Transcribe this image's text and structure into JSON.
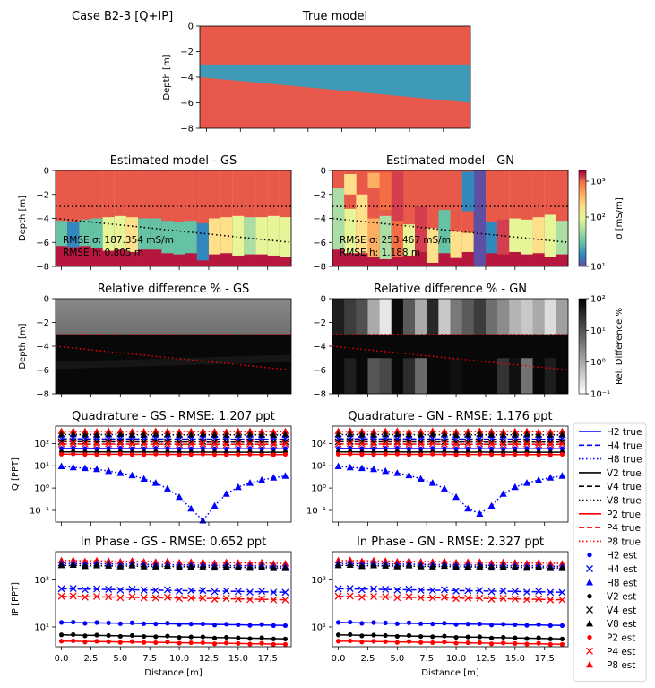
{
  "figure_title": "Case B2-3 [Q+IP]",
  "colors": {
    "true_top": "#e8594a",
    "true_bottom": "#e8574b",
    "true_middle": "#3f9ab7",
    "blue": "#0000ff",
    "black": "#000000",
    "red": "#ff0000"
  },
  "chart_data": [
    {
      "id": "true_model",
      "type": "heatmap",
      "title": "True model",
      "ylabel": "Depth [m]",
      "ylim": [
        -8,
        0
      ],
      "xlim": [
        -0.5,
        19.5
      ],
      "yticks": [
        "0",
        "−2",
        "−4",
        "−6",
        "−8"
      ],
      "layers": [
        {
          "name": "top",
          "sigma_mS_m": 1000
        },
        {
          "name": "middle",
          "sigma_mS_m": 20
        },
        {
          "name": "bottom",
          "sigma_mS_m": 1000
        }
      ],
      "interface_1_depth": [
        -3,
        -3
      ],
      "interface_2_depth": [
        -4,
        -6
      ]
    },
    {
      "id": "est_gs",
      "type": "heatmap",
      "title": "Estimated model - GS",
      "ylabel": "Depth [m]",
      "yticks": [
        "0",
        "−2",
        "−4",
        "−6",
        "−8"
      ],
      "annotation_sigma": "RMSE σ: 187.354 mS/m",
      "annotation_h": "RMSE h: 0.805 m",
      "sounding_h1": [
        4.2,
        4.3,
        4.1,
        4.0,
        3.9,
        3.8,
        3.9,
        4.0,
        4.0,
        4.2,
        4.3,
        4.2,
        4.4,
        4.0,
        3.9,
        3.8,
        3.9,
        3.9,
        3.8,
        3.9
      ],
      "sounding_h2": [
        6.3,
        6.4,
        6.3,
        6.5,
        6.7,
        6.6,
        6.8,
        6.6,
        6.6,
        6.9,
        7.0,
        6.9,
        7.5,
        7.0,
        6.9,
        7.1,
        7.0,
        7.0,
        7.1,
        7.2
      ],
      "sounding_sigma2": [
        30,
        20,
        35,
        40,
        120,
        100,
        150,
        40,
        30,
        30,
        40,
        40,
        25,
        150,
        150,
        110,
        80,
        120,
        130,
        110
      ]
    },
    {
      "id": "est_gn",
      "type": "heatmap",
      "title": "Estimated model - GN",
      "ylabel": "",
      "yticks": [
        "0",
        "−2",
        "−4",
        "−6",
        "−8"
      ],
      "annotation_sigma": "RMSE σ: 253.467 mS/m",
      "annotation_h": "RMSE h: 1.188 m",
      "colorbar_label": "σ [mS/m]",
      "colorbar_ticks": [
        "10³",
        "10²",
        "10¹"
      ],
      "colorbar_range": [
        10,
        2000
      ]
    },
    {
      "id": "rel_gs",
      "type": "heatmap",
      "title": "Relative difference % - GS",
      "ylabel": "Depth [m]",
      "yticks": [
        "0",
        "−2",
        "−4",
        "−6",
        "−8"
      ]
    },
    {
      "id": "rel_gn",
      "type": "heatmap",
      "title": "Relative difference % - GN",
      "ylabel": "",
      "yticks": [
        "0",
        "−2",
        "−4",
        "−6",
        "−8"
      ],
      "colorbar_label": "Rel. Difference %",
      "colorbar_ticks": [
        "10²",
        "10¹",
        "10⁰",
        "10⁻¹"
      ],
      "colorbar_range": [
        0.1,
        100
      ]
    },
    {
      "id": "quad_gs",
      "type": "line",
      "title": "Quadrature - GS - RMSE: 1.207 ppt",
      "ylabel": "Q [PPT]",
      "yscale": "log",
      "ylim": [
        0.03,
        600
      ],
      "yticks": [
        "10²",
        "10¹",
        "10⁰",
        "10⁻¹"
      ],
      "x": [
        0,
        1,
        2,
        3,
        4,
        5,
        6,
        7,
        8,
        9,
        10,
        11,
        12,
        13,
        14,
        15,
        16,
        17,
        18,
        19
      ],
      "H8": [
        9.5,
        8.5,
        7.8,
        7.0,
        5.8,
        4.7,
        3.7,
        2.6,
        1.7,
        0.95,
        0.4,
        0.12,
        0.035,
        0.16,
        0.55,
        1.1,
        1.7,
        2.3,
        2.9,
        3.5
      ],
      "const_levels": {
        "P8": 350,
        "V8": 250,
        "H4": 160,
        "V4": 120,
        "P4": 95,
        "H2": 60,
        "V2": 42,
        "P2": 33
      }
    },
    {
      "id": "quad_gn",
      "type": "line",
      "title": "Quadrature - GN - RMSE: 1.176 ppt",
      "ylabel": "",
      "yscale": "log",
      "ylim": [
        0.03,
        600
      ],
      "yticks": [
        "10²",
        "10¹",
        "10⁰",
        "10⁻¹"
      ],
      "x": [
        0,
        1,
        2,
        3,
        4,
        5,
        6,
        7,
        8,
        9,
        10,
        11,
        12,
        13,
        14,
        15,
        16,
        17,
        18,
        19
      ],
      "H8": [
        9.5,
        8.5,
        7.8,
        7.0,
        5.8,
        4.7,
        3.7,
        2.6,
        1.7,
        0.95,
        0.4,
        0.12,
        0.07,
        0.16,
        0.55,
        1.1,
        1.7,
        2.3,
        2.9,
        3.5
      ],
      "const_levels": {
        "P8": 350,
        "V8": 250,
        "H4": 160,
        "V4": 120,
        "P4": 95,
        "H2": 60,
        "V2": 42,
        "P2": 33
      }
    },
    {
      "id": "ip_gs",
      "type": "line",
      "title": "In Phase - GS - RMSE: 0.652 ppt",
      "ylabel": "IP [PPT]",
      "xlabel": "Distance [m]",
      "yscale": "log",
      "ylim": [
        3.8,
        400
      ],
      "yticks": [
        "10²",
        "10¹"
      ],
      "xticks": [
        "0.0",
        "2.5",
        "5.0",
        "7.5",
        "10.0",
        "12.5",
        "15.0",
        "17.5"
      ],
      "x": [
        0,
        1,
        2,
        3,
        4,
        5,
        6,
        7,
        8,
        9,
        10,
        11,
        12,
        13,
        14,
        15,
        16,
        17,
        18,
        19
      ],
      "start": {
        "P8": 260,
        "H8": 225,
        "V8": 205,
        "H4": 65,
        "P4": 45,
        "H2": 12.5,
        "V2": 6.8,
        "P2": 5.0
      },
      "end": {
        "P8": 225,
        "H8": 195,
        "V8": 180,
        "H4": 55,
        "P4": 38,
        "H2": 10.8,
        "V2": 5.6,
        "P2": 4.3
      }
    },
    {
      "id": "ip_gn",
      "type": "line",
      "title": "In Phase - GN - RMSE: 2.327 ppt",
      "ylabel": "",
      "xlabel": "Distance [m]",
      "yscale": "log",
      "ylim": [
        3.8,
        400
      ],
      "yticks": [
        "10²",
        "10¹"
      ],
      "xticks": [
        "0.0",
        "2.5",
        "5.0",
        "7.5",
        "10.0",
        "12.5",
        "15.0",
        "17.5"
      ],
      "x": [
        0,
        1,
        2,
        3,
        4,
        5,
        6,
        7,
        8,
        9,
        10,
        11,
        12,
        13,
        14,
        15,
        16,
        17,
        18,
        19
      ],
      "start": {
        "P8": 260,
        "H8": 225,
        "V8": 205,
        "H4": 65,
        "P4": 45,
        "H2": 12.5,
        "V2": 6.8,
        "P2": 5.0
      },
      "end": {
        "P8": 225,
        "H8": 195,
        "V8": 180,
        "H4": 55,
        "P4": 38,
        "H2": 10.8,
        "V2": 5.6,
        "P2": 4.3
      }
    }
  ],
  "legend": [
    {
      "label": "H2 true",
      "color": "#0000ff",
      "kind": "solid"
    },
    {
      "label": "H4 true",
      "color": "#0000ff",
      "kind": "dashed"
    },
    {
      "label": "H8 true",
      "color": "#0000ff",
      "kind": "dotted"
    },
    {
      "label": "V2 true",
      "color": "#000000",
      "kind": "solid"
    },
    {
      "label": "V4 true",
      "color": "#000000",
      "kind": "dashed"
    },
    {
      "label": "V8 true",
      "color": "#000000",
      "kind": "dotted"
    },
    {
      "label": "P2 true",
      "color": "#ff0000",
      "kind": "solid"
    },
    {
      "label": "P4 true",
      "color": "#ff0000",
      "kind": "dashed"
    },
    {
      "label": "P8 true",
      "color": "#ff0000",
      "kind": "dotted"
    },
    {
      "label": "H2 est",
      "color": "#0000ff",
      "kind": "dot"
    },
    {
      "label": "H4 est",
      "color": "#0000ff",
      "kind": "x"
    },
    {
      "label": "H8 est",
      "color": "#0000ff",
      "kind": "tri"
    },
    {
      "label": "V2 est",
      "color": "#000000",
      "kind": "dot"
    },
    {
      "label": "V4 est",
      "color": "#000000",
      "kind": "x"
    },
    {
      "label": "V8 est",
      "color": "#000000",
      "kind": "tri"
    },
    {
      "label": "P2 est",
      "color": "#ff0000",
      "kind": "dot"
    },
    {
      "label": "P4 est",
      "color": "#ff0000",
      "kind": "x"
    },
    {
      "label": "P8 est",
      "color": "#ff0000",
      "kind": "tri"
    }
  ]
}
